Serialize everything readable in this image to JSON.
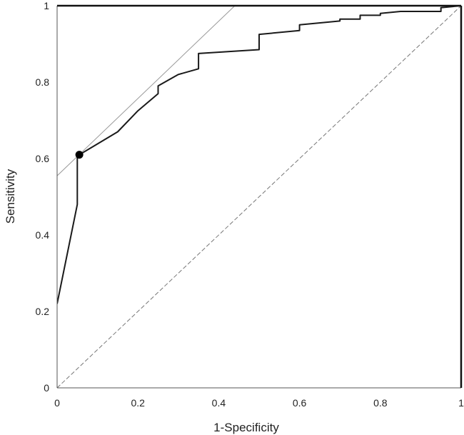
{
  "chart_data": {
    "type": "line",
    "title": "",
    "xlabel": "1-Specificity",
    "ylabel": "Sensitivity",
    "xlim": [
      0,
      1
    ],
    "ylim": [
      0,
      1
    ],
    "x_ticks": [
      "0",
      "0.2",
      "0.4",
      "0.6",
      "0.8",
      "1"
    ],
    "y_ticks": [
      "0",
      "0.2",
      "0.4",
      "0.6",
      "0.8",
      "1"
    ],
    "x_tick_values": [
      0,
      0.2,
      0.4,
      0.6,
      0.8,
      1
    ],
    "y_tick_values": [
      0,
      0.2,
      0.4,
      0.6,
      0.8,
      1
    ],
    "grid": false,
    "legend": "none",
    "series": [
      {
        "role": "roc-curve",
        "color": "#1a1a1a",
        "x": [
          0,
          0.05,
          0.05,
          0.055,
          0.15,
          0.2,
          0.25,
          0.25,
          0.3,
          0.35,
          0.35,
          0.5,
          0.5,
          0.6,
          0.6,
          0.7,
          0.7,
          0.75,
          0.75,
          0.8,
          0.8,
          0.85,
          0.95,
          0.95,
          1
        ],
        "y": [
          0.22,
          0.48,
          0.61,
          0.61,
          0.67,
          0.725,
          0.77,
          0.79,
          0.82,
          0.835,
          0.875,
          0.885,
          0.925,
          0.935,
          0.95,
          0.96,
          0.965,
          0.965,
          0.975,
          0.975,
          0.98,
          0.985,
          0.985,
          0.995,
          1
        ]
      },
      {
        "role": "reference-diagonal",
        "color": "#777777",
        "x": [
          0,
          1
        ],
        "y": [
          0,
          1
        ]
      },
      {
        "role": "tangent-line",
        "color": "#999999",
        "x": [
          0,
          0.44
        ],
        "y": [
          0.555,
          1
        ]
      }
    ],
    "highlight_point": {
      "x": 0.055,
      "y": 0.61,
      "color": "#000000"
    }
  }
}
